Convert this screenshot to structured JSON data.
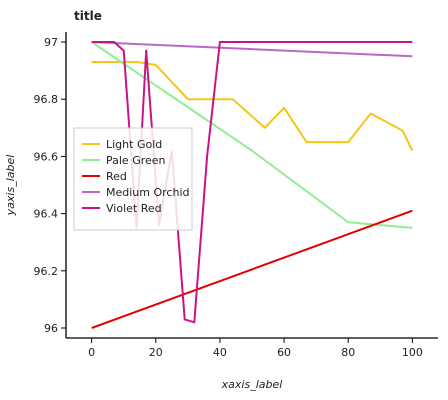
{
  "chart_data": {
    "type": "line",
    "title": "title",
    "xlabel": "xaxis_label",
    "ylabel": "yaxis_label",
    "xlim": [
      -8,
      108
    ],
    "ylim": [
      95.965,
      97.035
    ],
    "x_ticks": [
      0,
      20,
      40,
      60,
      80,
      100
    ],
    "x_tick_labels": [
      "0",
      "20",
      "40",
      "60",
      "80",
      "100"
    ],
    "y_ticks": [
      96.0,
      96.2,
      96.4,
      96.6,
      96.8,
      97.0
    ],
    "y_tick_labels": [
      "96",
      "96.2",
      "96.4",
      "96.6",
      "96.8",
      "97"
    ],
    "grid": false,
    "legend_position": "left",
    "series": [
      {
        "name": "Light Gold",
        "color": "#F5C518",
        "x": [
          0,
          10,
          14,
          20,
          30,
          38,
          44,
          54,
          60,
          67,
          70,
          80,
          87,
          97,
          100
        ],
        "y": [
          96.93,
          96.93,
          96.93,
          96.92,
          96.8,
          96.8,
          96.8,
          96.7,
          96.77,
          96.65,
          96.65,
          96.65,
          96.75,
          96.69,
          96.62
        ]
      },
      {
        "name": "Pale Green",
        "color": "#90EE90",
        "x": [
          0,
          50,
          80,
          100
        ],
        "y": [
          97.0,
          96.62,
          96.37,
          96.35
        ]
      },
      {
        "name": "Red",
        "color": "#E60000",
        "x": [
          0,
          100
        ],
        "y": [
          96.0,
          96.41
        ]
      },
      {
        "name": "Medium Orchid",
        "color": "#BA68C8",
        "x": [
          0,
          100
        ],
        "y": [
          97.0,
          96.95
        ]
      },
      {
        "name": "Violet Red",
        "color": "#C71585",
        "x": [
          0,
          7,
          10,
          14,
          17,
          21,
          25,
          29,
          32,
          36,
          40,
          50,
          60,
          70,
          80,
          90,
          100
        ],
        "y": [
          97.0,
          97.0,
          96.97,
          96.35,
          96.97,
          96.36,
          96.62,
          96.03,
          96.02,
          96.6,
          97.0,
          97.0,
          97.0,
          97.0,
          97.0,
          97.0,
          97.0
        ]
      }
    ]
  }
}
